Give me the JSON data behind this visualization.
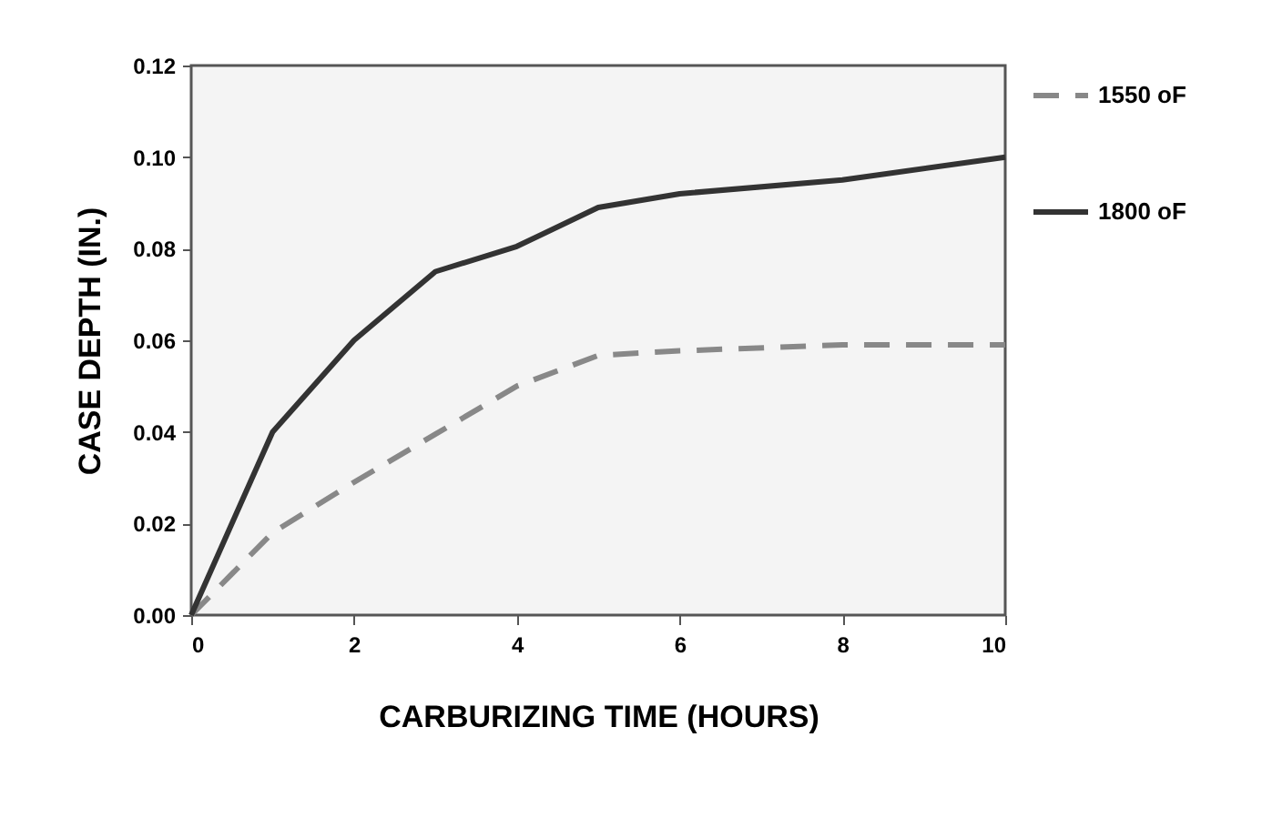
{
  "chart_data": {
    "type": "line",
    "xlabel": "CARBURIZING TIME (HOURS)",
    "ylabel": "CASE DEPTH (IN.)",
    "x": [
      0,
      1,
      2,
      3,
      4,
      5,
      6,
      8,
      10
    ],
    "series": [
      {
        "name": "1550 oF",
        "color": "#888888",
        "line_style": "dashed",
        "values": [
          0,
          0.018,
          0.029,
          0.0395,
          0.05,
          0.0567,
          0.0577,
          0.059,
          0.059
        ]
      },
      {
        "name": "1800 oF",
        "color": "#333333",
        "line_style": "solid",
        "values": [
          0,
          0.04,
          0.06,
          0.075,
          0.0805,
          0.089,
          0.092,
          0.095,
          0.1
        ]
      }
    ],
    "xlim": [
      0,
      10
    ],
    "xticks": [
      0,
      2,
      4,
      6,
      8,
      10
    ],
    "ylim": [
      0,
      0.12
    ],
    "yticks": [
      {
        "value": 0,
        "label": "0.00"
      },
      {
        "value": 0.02,
        "label": "0.02"
      },
      {
        "value": 0.04,
        "label": "0.04"
      },
      {
        "value": 0.06,
        "label": "0.06"
      },
      {
        "value": 0.08,
        "label": "0.08"
      },
      {
        "value": 0.1,
        "label": "0.10"
      },
      {
        "value": 0.12,
        "label": "0.12"
      }
    ],
    "grid": false,
    "legend": "right"
  }
}
